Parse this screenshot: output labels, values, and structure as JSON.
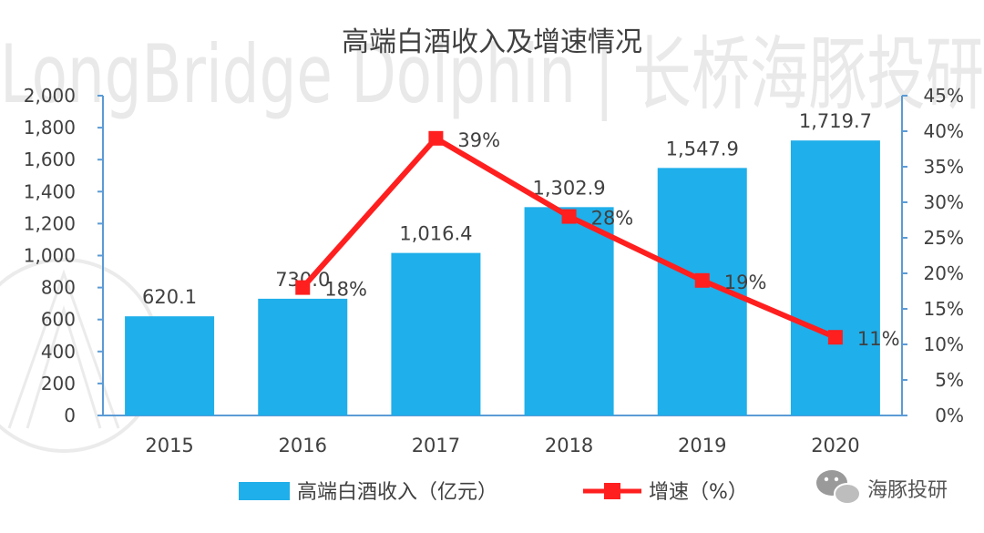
{
  "watermark": {
    "text": "LongBridge Dolphin | 长桥海豚投研"
  },
  "brand_badge": {
    "text": "海豚投研",
    "icon": "wechat-icon"
  },
  "chart_data": {
    "type": "bar",
    "title": "高端白酒收入及增速情况",
    "categories": [
      "2015",
      "2016",
      "2017",
      "2018",
      "2019",
      "2020"
    ],
    "series": [
      {
        "name": "高端白酒收入（亿元）",
        "type": "bar",
        "axis": "left",
        "color": "#1fafea",
        "values": [
          620.1,
          730.0,
          1016.4,
          1302.9,
          1547.9,
          1719.7
        ],
        "labels": [
          "620.1",
          "730.0",
          "1,016.4",
          "1,302.9",
          "1,547.9",
          "1,719.7"
        ]
      },
      {
        "name": "增速（%）",
        "type": "line",
        "axis": "right",
        "color": "#ff1f1f",
        "marker": "square",
        "x": [
          "2016",
          "2017",
          "2018",
          "2019",
          "2020"
        ],
        "values": [
          18,
          39,
          28,
          19,
          11
        ],
        "labels": [
          "18%",
          "39%",
          "28%",
          "19%",
          "11%"
        ]
      }
    ],
    "y_left": {
      "min": 0,
      "max": 2000,
      "step": 200,
      "tick_labels": [
        "0",
        "200",
        "400",
        "600",
        "800",
        "1,000",
        "1,200",
        "1,400",
        "1,600",
        "1,800",
        "2,000"
      ]
    },
    "y_right": {
      "min": 0,
      "max": 45,
      "step": 5,
      "tick_labels": [
        "0%",
        "5%",
        "10%",
        "15%",
        "20%",
        "25%",
        "30%",
        "35%",
        "40%",
        "45%"
      ]
    },
    "grid": false,
    "legend_position": "bottom",
    "axis_color": "#5b9bd5"
  }
}
